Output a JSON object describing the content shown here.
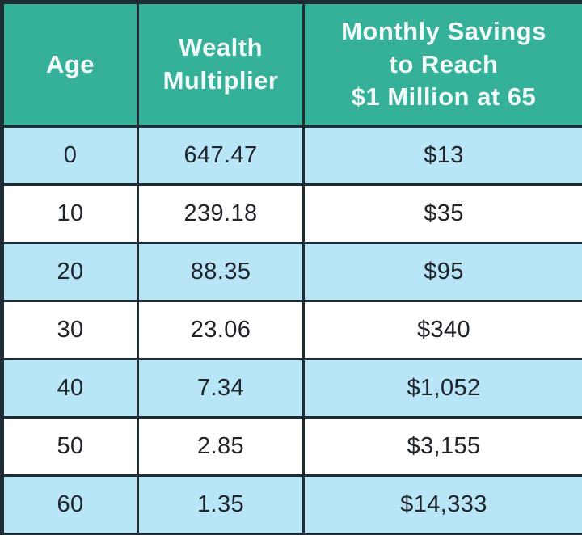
{
  "table": {
    "header_display": [
      "Age",
      "Wealth\nMultiplier",
      "Monthly Savings\nto Reach\n$1 Million at 65"
    ]
  },
  "colors": {
    "header_bg": "#36b199",
    "header_text": "#f2faf8",
    "row_alt_bg": "#b9e6f7",
    "row_bg": "#ffffff",
    "border": "#1e2c33",
    "body_text": "#20242b"
  },
  "chart_data": {
    "type": "table",
    "columns": [
      "Age",
      "Wealth Multiplier",
      "Monthly Savings to Reach $1 Million at 65"
    ],
    "rows": [
      [
        "0",
        "647.47",
        "$13"
      ],
      [
        "10",
        "239.18",
        "$35"
      ],
      [
        "20",
        "88.35",
        "$95"
      ],
      [
        "30",
        "23.06",
        "$340"
      ],
      [
        "40",
        "7.34",
        "$1,052"
      ],
      [
        "50",
        "2.85",
        "$3,155"
      ],
      [
        "60",
        "1.35",
        "$14,333"
      ]
    ]
  }
}
